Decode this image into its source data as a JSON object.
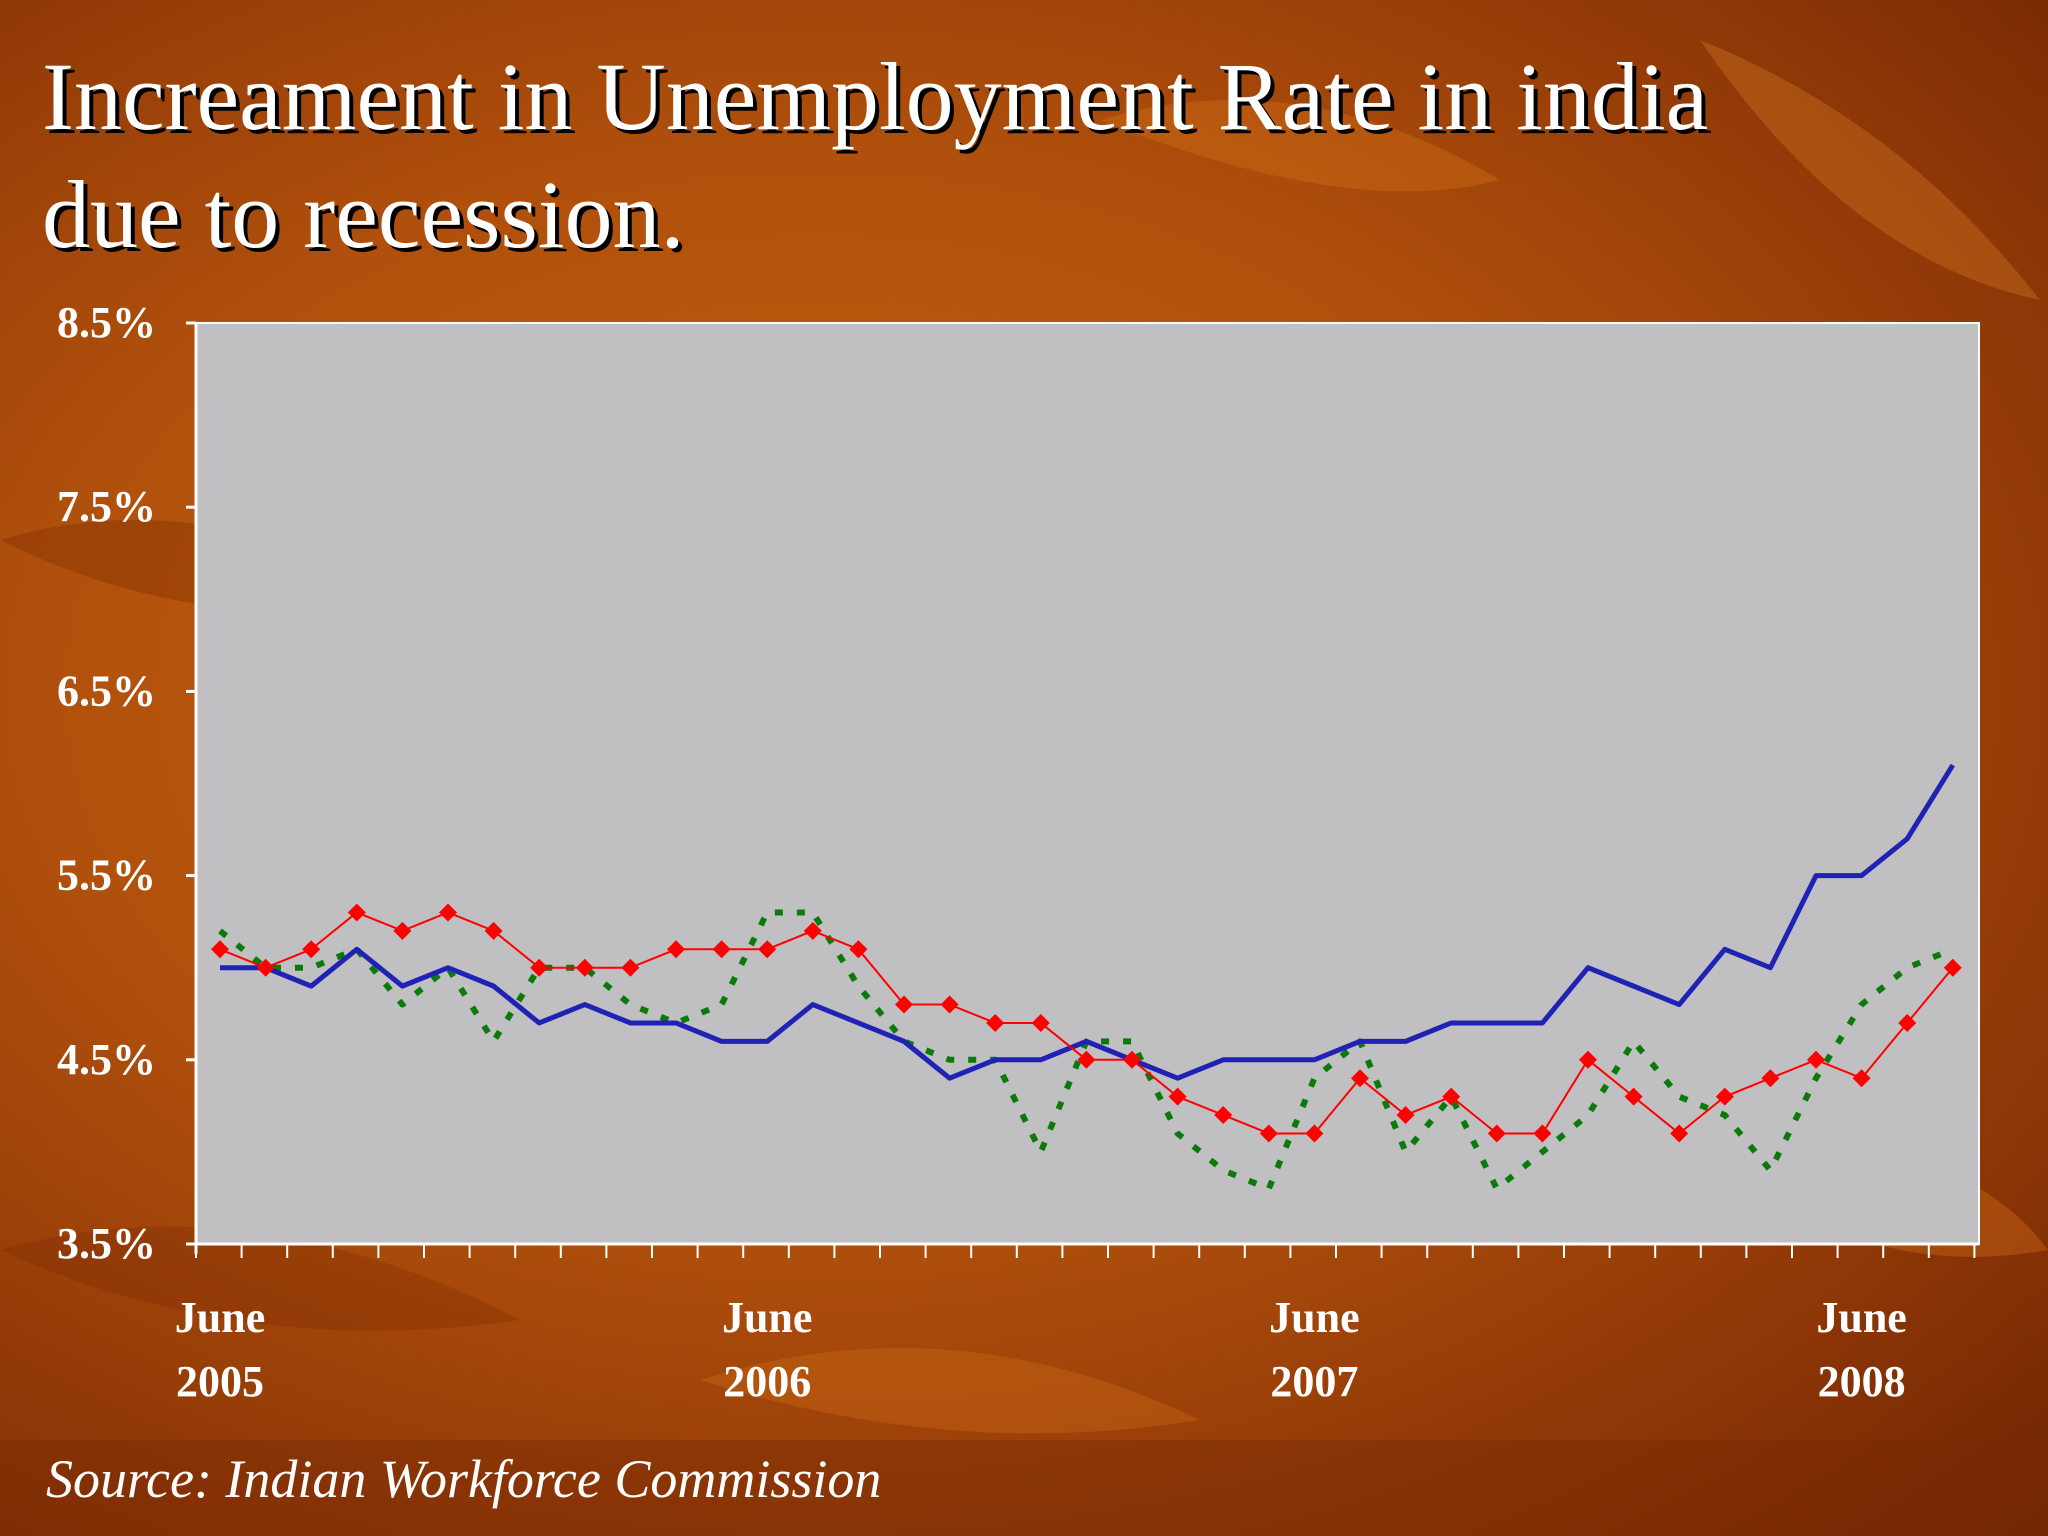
{
  "slide": {
    "title_line1": "Increament in Unemployment Rate in india",
    "title_line2": "due to recession.",
    "source": "Source: Indian Workforce Commission"
  },
  "colors": {
    "plot_background": "#c0bfc1",
    "series_blue": "#1f22b4",
    "series_red": "#ff0000",
    "series_green": "#0b7a0b",
    "axis_text": "#ffffff"
  },
  "chart_data": {
    "type": "line",
    "title": "",
    "xlabel": "",
    "ylabel": "",
    "ylim": [
      3.5,
      8.5
    ],
    "y_ticks": [
      "3.5%",
      "4.5%",
      "5.5%",
      "6.5%",
      "7.5%",
      "8.5%"
    ],
    "x_tick_labels": [
      {
        "month_index": 0,
        "line1": "June",
        "line2": "2005"
      },
      {
        "month_index": 12,
        "line1": "June",
        "line2": "2006"
      },
      {
        "month_index": 24,
        "line1": "June",
        "line2": "2007"
      },
      {
        "month_index": 36,
        "line1": "June",
        "line2": "2008"
      }
    ],
    "x_count": 39,
    "legend": "none",
    "grid": false,
    "series": [
      {
        "color": "blue",
        "style": "solid",
        "values": [
          5.0,
          5.0,
          4.9,
          5.1,
          4.9,
          5.0,
          4.9,
          4.7,
          4.8,
          4.7,
          4.7,
          4.6,
          4.6,
          4.8,
          4.7,
          4.6,
          4.4,
          4.5,
          4.5,
          4.6,
          4.5,
          4.4,
          4.5,
          4.5,
          4.5,
          4.6,
          4.6,
          4.7,
          4.7,
          4.7,
          5.0,
          4.9,
          4.8,
          5.1,
          5.0,
          5.5,
          5.5,
          5.7,
          6.1
        ]
      },
      {
        "color": "red",
        "style": "diamond-markers",
        "values": [
          5.1,
          5.0,
          5.1,
          5.3,
          5.2,
          5.3,
          5.2,
          5.0,
          5.0,
          5.0,
          5.1,
          5.1,
          5.1,
          5.2,
          5.1,
          4.8,
          4.8,
          4.7,
          4.7,
          4.5,
          4.5,
          4.3,
          4.2,
          4.1,
          4.1,
          4.4,
          4.2,
          4.3,
          4.1,
          4.1,
          4.5,
          4.3,
          4.1,
          4.3,
          4.4,
          4.5,
          4.4,
          4.7,
          5.0
        ]
      },
      {
        "color": "green",
        "style": "dotted",
        "values": [
          5.2,
          5.0,
          5.0,
          5.1,
          4.8,
          5.0,
          4.6,
          5.0,
          5.0,
          4.8,
          4.7,
          4.8,
          5.3,
          5.3,
          4.9,
          4.6,
          4.5,
          4.5,
          4.0,
          4.6,
          4.6,
          4.1,
          3.9,
          3.8,
          4.4,
          4.6,
          4.0,
          4.3,
          3.8,
          4.0,
          4.2,
          4.6,
          4.3,
          4.2,
          3.9,
          4.4,
          4.8,
          5.0,
          5.1
        ]
      }
    ]
  }
}
